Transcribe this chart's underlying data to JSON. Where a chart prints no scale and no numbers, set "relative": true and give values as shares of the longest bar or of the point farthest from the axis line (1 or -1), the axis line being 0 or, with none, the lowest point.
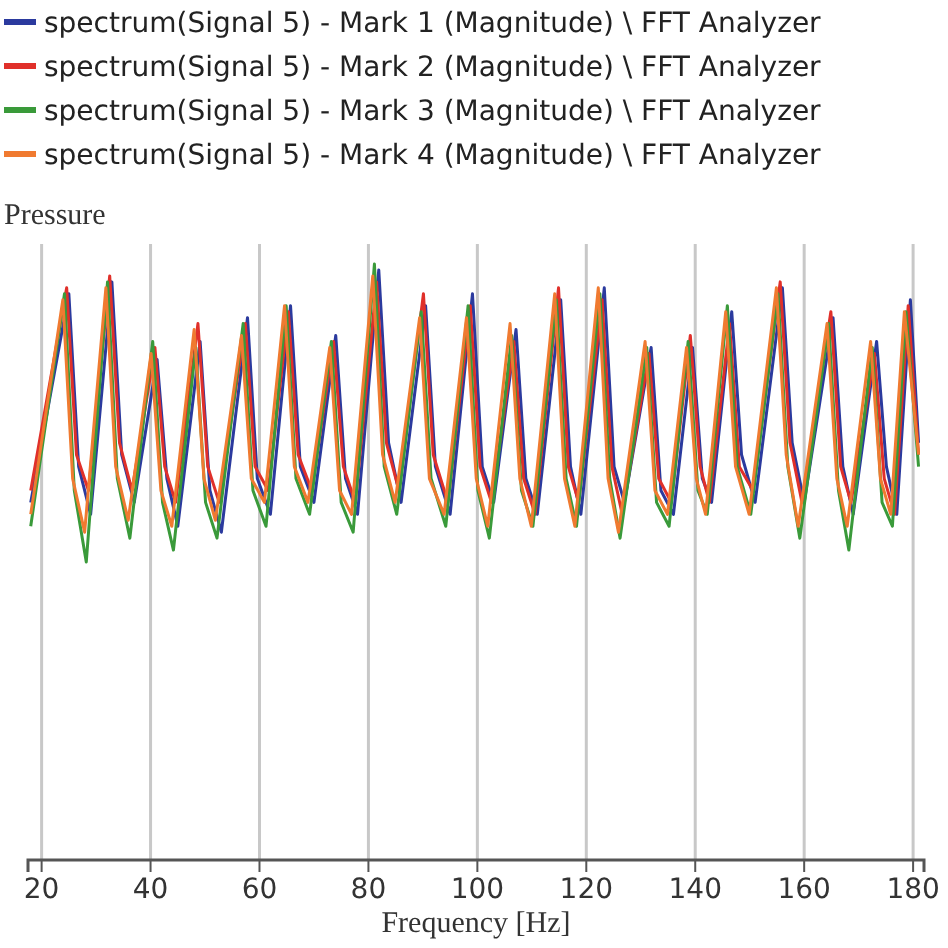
{
  "chart_data": {
    "type": "line",
    "relative": true,
    "xlabel": "Frequency [Hz]",
    "ylabel": "Pressure",
    "legend": "top",
    "grid": "x",
    "marker": "none",
    "line_style": "solid",
    "xlim": [
      17.5,
      182
    ],
    "xticks": [
      20,
      40,
      60,
      80,
      100,
      120,
      140,
      160,
      180
    ],
    "series": [
      {
        "name": "spectrum(Signal 5) - Mark 1 (Magnitude) \\ FFT Analyzer",
        "color": "#2b3a9e",
        "x": [
          18,
          25,
          26.8,
          29,
          32.9,
          34.7,
          37,
          41.2,
          43,
          45,
          49.1,
          50.9,
          53,
          57.8,
          59.6,
          62,
          65.7,
          67.5,
          70,
          74,
          75.8,
          78,
          81.9,
          83.7,
          86,
          90.5,
          92.3,
          95,
          99.1,
          100.9,
          103,
          107.1,
          108.9,
          111,
          115.3,
          117.1,
          119,
          123.3,
          125.1,
          127,
          131.9,
          133.7,
          136,
          139.5,
          141.3,
          143,
          146.7,
          148.5,
          151,
          156,
          157.8,
          160,
          165.3,
          167.1,
          169,
          173.3,
          175.1,
          177,
          179.5,
          181
        ],
        "values": [
          0.6,
          0.95,
          0.66,
          0.58,
          0.97,
          0.68,
          0.6,
          0.84,
          0.64,
          0.56,
          0.87,
          0.62,
          0.55,
          0.91,
          0.64,
          0.58,
          0.93,
          0.66,
          0.6,
          0.88,
          0.64,
          0.58,
          0.99,
          0.7,
          0.6,
          0.93,
          0.66,
          0.58,
          0.95,
          0.66,
          0.6,
          0.89,
          0.64,
          0.58,
          0.94,
          0.66,
          0.58,
          0.96,
          0.66,
          0.6,
          0.86,
          0.62,
          0.58,
          0.86,
          0.64,
          0.6,
          0.92,
          0.68,
          0.6,
          0.96,
          0.7,
          0.6,
          0.91,
          0.66,
          0.58,
          0.87,
          0.66,
          0.58,
          0.94,
          0.7
        ]
      },
      {
        "name": "spectrum(Signal 5) - Mark 2 (Magnitude) \\ FFT Analyzer",
        "color": "#e0302a",
        "x": [
          18,
          24.6,
          26.4,
          28.6,
          32.5,
          34.3,
          36.6,
          40.8,
          42.6,
          44.6,
          48.7,
          50.5,
          52.6,
          57.4,
          59.2,
          61.6,
          65.3,
          67.1,
          69.6,
          73.6,
          75.4,
          77.6,
          81.5,
          83.3,
          85.6,
          90.1,
          91.9,
          94.6,
          98.7,
          100.5,
          102.6,
          106.7,
          108.5,
          110.6,
          114.9,
          116.7,
          118.6,
          122.9,
          124.7,
          126.6,
          131.5,
          133.3,
          135.6,
          139.1,
          140.9,
          142.6,
          146.3,
          148.1,
          150.6,
          155.6,
          157.4,
          159.6,
          164.9,
          166.7,
          168.6,
          172.9,
          174.7,
          176.6,
          179.1,
          181
        ],
        "values": [
          0.62,
          0.96,
          0.68,
          0.62,
          0.98,
          0.7,
          0.62,
          0.86,
          0.66,
          0.6,
          0.9,
          0.66,
          0.6,
          0.9,
          0.66,
          0.62,
          0.92,
          0.68,
          0.62,
          0.87,
          0.66,
          0.6,
          0.97,
          0.7,
          0.62,
          0.95,
          0.68,
          0.6,
          0.93,
          0.66,
          0.6,
          0.87,
          0.64,
          0.58,
          0.96,
          0.66,
          0.6,
          0.94,
          0.66,
          0.58,
          0.85,
          0.64,
          0.6,
          0.88,
          0.66,
          0.6,
          0.9,
          0.66,
          0.62,
          0.97,
          0.7,
          0.6,
          0.92,
          0.66,
          0.6,
          0.85,
          0.64,
          0.58,
          0.93,
          0.68
        ]
      },
      {
        "name": "spectrum(Signal 5) - Mark 3 (Magnitude) \\ FFT Analyzer",
        "color": "#3a9a3a",
        "x": [
          18,
          24.2,
          26,
          28.2,
          32.1,
          33.9,
          36.2,
          40.4,
          42.2,
          44.2,
          48.3,
          50.1,
          52.2,
          57,
          58.8,
          61.2,
          64.9,
          66.7,
          69.2,
          73.2,
          75,
          77.2,
          81.1,
          82.9,
          85.2,
          89.7,
          91.5,
          94.2,
          98.3,
          100.1,
          102.2,
          106.3,
          108.1,
          110.2,
          114.5,
          116.3,
          118.2,
          122.5,
          124.3,
          126.2,
          131.1,
          132.9,
          135.2,
          138.7,
          140.5,
          142.2,
          145.9,
          147.7,
          150.2,
          155.2,
          157,
          159.2,
          164.5,
          166.3,
          168.2,
          172.5,
          174.3,
          176.2,
          178.7,
          181
        ],
        "values": [
          0.56,
          0.95,
          0.62,
          0.5,
          0.97,
          0.64,
          0.54,
          0.87,
          0.6,
          0.52,
          0.86,
          0.6,
          0.54,
          0.9,
          0.62,
          0.56,
          0.93,
          0.64,
          0.58,
          0.87,
          0.6,
          0.55,
          1.0,
          0.66,
          0.58,
          0.92,
          0.64,
          0.56,
          0.93,
          0.62,
          0.54,
          0.88,
          0.62,
          0.56,
          0.94,
          0.64,
          0.56,
          0.95,
          0.64,
          0.54,
          0.86,
          0.6,
          0.56,
          0.87,
          0.62,
          0.58,
          0.93,
          0.66,
          0.58,
          0.95,
          0.66,
          0.54,
          0.9,
          0.62,
          0.52,
          0.86,
          0.6,
          0.56,
          0.92,
          0.66
        ]
      },
      {
        "name": "spectrum(Signal 5) - Mark 4 (Magnitude) \\ FFT Analyzer",
        "color": "#f07a30",
        "x": [
          18,
          23.9,
          25.7,
          27.9,
          31.8,
          33.6,
          35.9,
          40.1,
          41.9,
          43.9,
          48,
          49.8,
          51.9,
          56.7,
          58.5,
          60.9,
          64.6,
          66.4,
          68.9,
          72.9,
          74.7,
          76.9,
          80.8,
          82.6,
          84.9,
          89.4,
          91.2,
          93.9,
          98,
          99.8,
          101.9,
          106,
          107.8,
          109.9,
          114.2,
          116,
          117.9,
          122.2,
          124,
          125.9,
          130.8,
          132.6,
          134.9,
          138.4,
          140.2,
          141.9,
          145.6,
          147.4,
          149.9,
          154.9,
          156.7,
          158.9,
          164.2,
          166,
          167.9,
          172.2,
          174,
          175.9,
          178.4,
          181
        ],
        "values": [
          0.58,
          0.94,
          0.64,
          0.55,
          0.96,
          0.66,
          0.57,
          0.85,
          0.62,
          0.56,
          0.89,
          0.64,
          0.57,
          0.88,
          0.64,
          0.6,
          0.93,
          0.66,
          0.6,
          0.86,
          0.62,
          0.58,
          0.98,
          0.68,
          0.6,
          0.91,
          0.64,
          0.58,
          0.91,
          0.64,
          0.56,
          0.9,
          0.64,
          0.56,
          0.95,
          0.64,
          0.56,
          0.96,
          0.64,
          0.55,
          0.87,
          0.62,
          0.58,
          0.86,
          0.64,
          0.58,
          0.92,
          0.66,
          0.58,
          0.96,
          0.68,
          0.56,
          0.9,
          0.64,
          0.56,
          0.87,
          0.64,
          0.58,
          0.92,
          0.68
        ]
      }
    ]
  }
}
